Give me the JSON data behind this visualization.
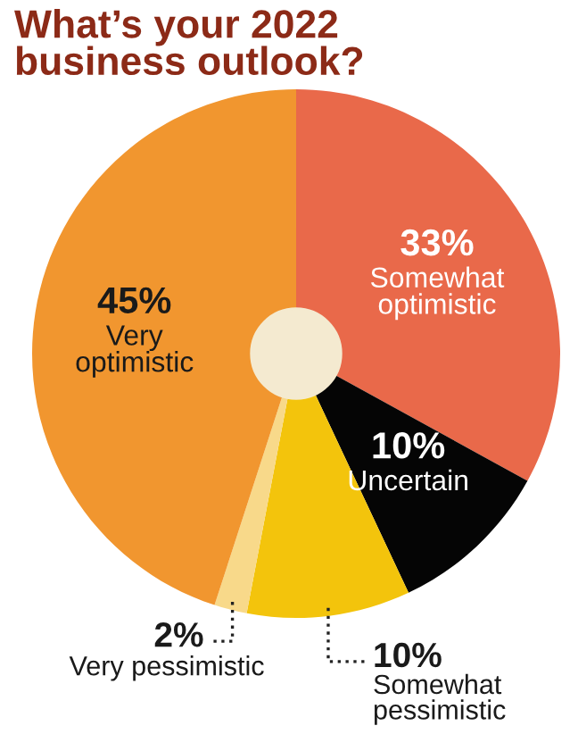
{
  "chart_data": {
    "type": "donut",
    "title": "What’s your 2022\nbusiness outlook?",
    "categories": [
      "Somewhat\noptimistic",
      "Uncertain",
      "Somewhat\npessimistic",
      "Very pessimistic",
      "Very\noptimistic"
    ],
    "values": [
      33,
      10,
      10,
      2,
      45
    ],
    "value_labels": [
      "33%",
      "10%",
      "10%",
      "2%",
      "45%"
    ],
    "colors": [
      "#e9694a",
      "#050505",
      "#f3c40c",
      "#f8d98a",
      "#f1962f"
    ]
  }
}
